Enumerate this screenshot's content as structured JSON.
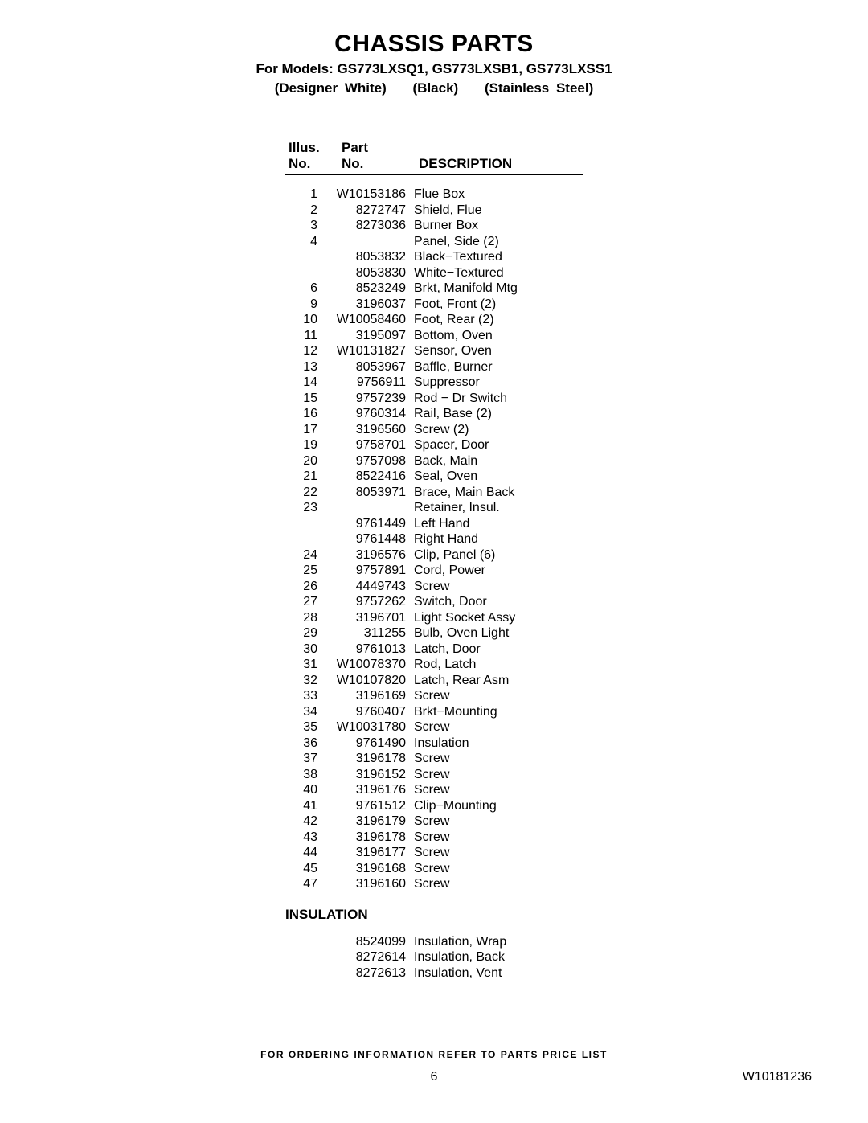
{
  "header": {
    "title": "CHASSIS PARTS",
    "subtitle": "For Models: GS773LXSQ1, GS773LXSB1, GS773LXSS1",
    "color1": "(Designer White)",
    "color2": "(Black)",
    "color3": "(Stainless Steel)"
  },
  "columns": {
    "illus1": "Illus.",
    "illus2": "No.",
    "part1": "Part",
    "part2": "No.",
    "desc": "DESCRIPTION"
  },
  "rows": [
    {
      "illus": "1",
      "part": "W10153186",
      "desc": "Flue Box"
    },
    {
      "illus": "2",
      "part": "8272747",
      "desc": "Shield, Flue"
    },
    {
      "illus": "3",
      "part": "8273036",
      "desc": "Burner Box"
    },
    {
      "illus": "4",
      "part": "",
      "desc": "Panel, Side (2)"
    },
    {
      "illus": "",
      "part": "8053832",
      "desc": "Black−Textured"
    },
    {
      "illus": "",
      "part": "8053830",
      "desc": "White−Textured"
    },
    {
      "illus": "6",
      "part": "8523249",
      "desc": "Brkt, Manifold Mtg"
    },
    {
      "illus": "9",
      "part": "3196037",
      "desc": "Foot, Front (2)"
    },
    {
      "illus": "10",
      "part": "W10058460",
      "desc": "Foot, Rear (2)"
    },
    {
      "illus": "11",
      "part": "3195097",
      "desc": "Bottom, Oven"
    },
    {
      "illus": "12",
      "part": "W10131827",
      "desc": "Sensor, Oven"
    },
    {
      "illus": "13",
      "part": "8053967",
      "desc": "Baffle, Burner"
    },
    {
      "illus": "14",
      "part": "9756911",
      "desc": "Suppressor"
    },
    {
      "illus": "15",
      "part": "9757239",
      "desc": "Rod − Dr Switch"
    },
    {
      "illus": "16",
      "part": "9760314",
      "desc": "Rail, Base (2)"
    },
    {
      "illus": "17",
      "part": "3196560",
      "desc": "Screw (2)"
    },
    {
      "illus": "19",
      "part": "9758701",
      "desc": "Spacer, Door"
    },
    {
      "illus": "20",
      "part": "9757098",
      "desc": "Back, Main"
    },
    {
      "illus": "21",
      "part": "8522416",
      "desc": "Seal, Oven"
    },
    {
      "illus": "22",
      "part": "8053971",
      "desc": "Brace, Main Back"
    },
    {
      "illus": "23",
      "part": "",
      "desc": "Retainer, Insul."
    },
    {
      "illus": "",
      "part": "9761449",
      "desc": "Left Hand"
    },
    {
      "illus": "",
      "part": "9761448",
      "desc": "Right Hand"
    },
    {
      "illus": "24",
      "part": "3196576",
      "desc": "Clip, Panel (6)"
    },
    {
      "illus": "25",
      "part": "9757891",
      "desc": "Cord, Power"
    },
    {
      "illus": "26",
      "part": "4449743",
      "desc": "Screw"
    },
    {
      "illus": "27",
      "part": "9757262",
      "desc": "Switch, Door"
    },
    {
      "illus": "28",
      "part": "3196701",
      "desc": "Light Socket Assy"
    },
    {
      "illus": "29",
      "part": "311255",
      "desc": "Bulb, Oven Light"
    },
    {
      "illus": "30",
      "part": "9761013",
      "desc": "Latch, Door"
    },
    {
      "illus": "31",
      "part": "W10078370",
      "desc": "Rod, Latch"
    },
    {
      "illus": "32",
      "part": "W10107820",
      "desc": "Latch, Rear Asm"
    },
    {
      "illus": "33",
      "part": "3196169",
      "desc": "Screw"
    },
    {
      "illus": "34",
      "part": "9760407",
      "desc": "Brkt−Mounting"
    },
    {
      "illus": "35",
      "part": "W10031780",
      "desc": "Screw"
    },
    {
      "illus": "36",
      "part": "9761490",
      "desc": "Insulation"
    },
    {
      "illus": "37",
      "part": "3196178",
      "desc": "Screw"
    },
    {
      "illus": "38",
      "part": "3196152",
      "desc": "Screw"
    },
    {
      "illus": "40",
      "part": "3196176",
      "desc": "Screw"
    },
    {
      "illus": "41",
      "part": "9761512",
      "desc": "Clip−Mounting"
    },
    {
      "illus": "42",
      "part": "3196179",
      "desc": "Screw"
    },
    {
      "illus": "43",
      "part": "3196178",
      "desc": "Screw"
    },
    {
      "illus": "44",
      "part": "3196177",
      "desc": "Screw"
    },
    {
      "illus": "45",
      "part": "3196168",
      "desc": "Screw"
    },
    {
      "illus": "47",
      "part": "3196160",
      "desc": "Screw"
    }
  ],
  "insulation_header": "INSULATION",
  "insulation_rows": [
    {
      "illus": "",
      "part": "8524099",
      "desc": "Insulation, Wrap"
    },
    {
      "illus": "",
      "part": "8272614",
      "desc": "Insulation, Back"
    },
    {
      "illus": "",
      "part": "8272613",
      "desc": "Insulation, Vent"
    }
  ],
  "footer": {
    "note": "FOR ORDERING INFORMATION REFER TO PARTS PRICE LIST",
    "page": "6",
    "docid": "W10181236"
  }
}
